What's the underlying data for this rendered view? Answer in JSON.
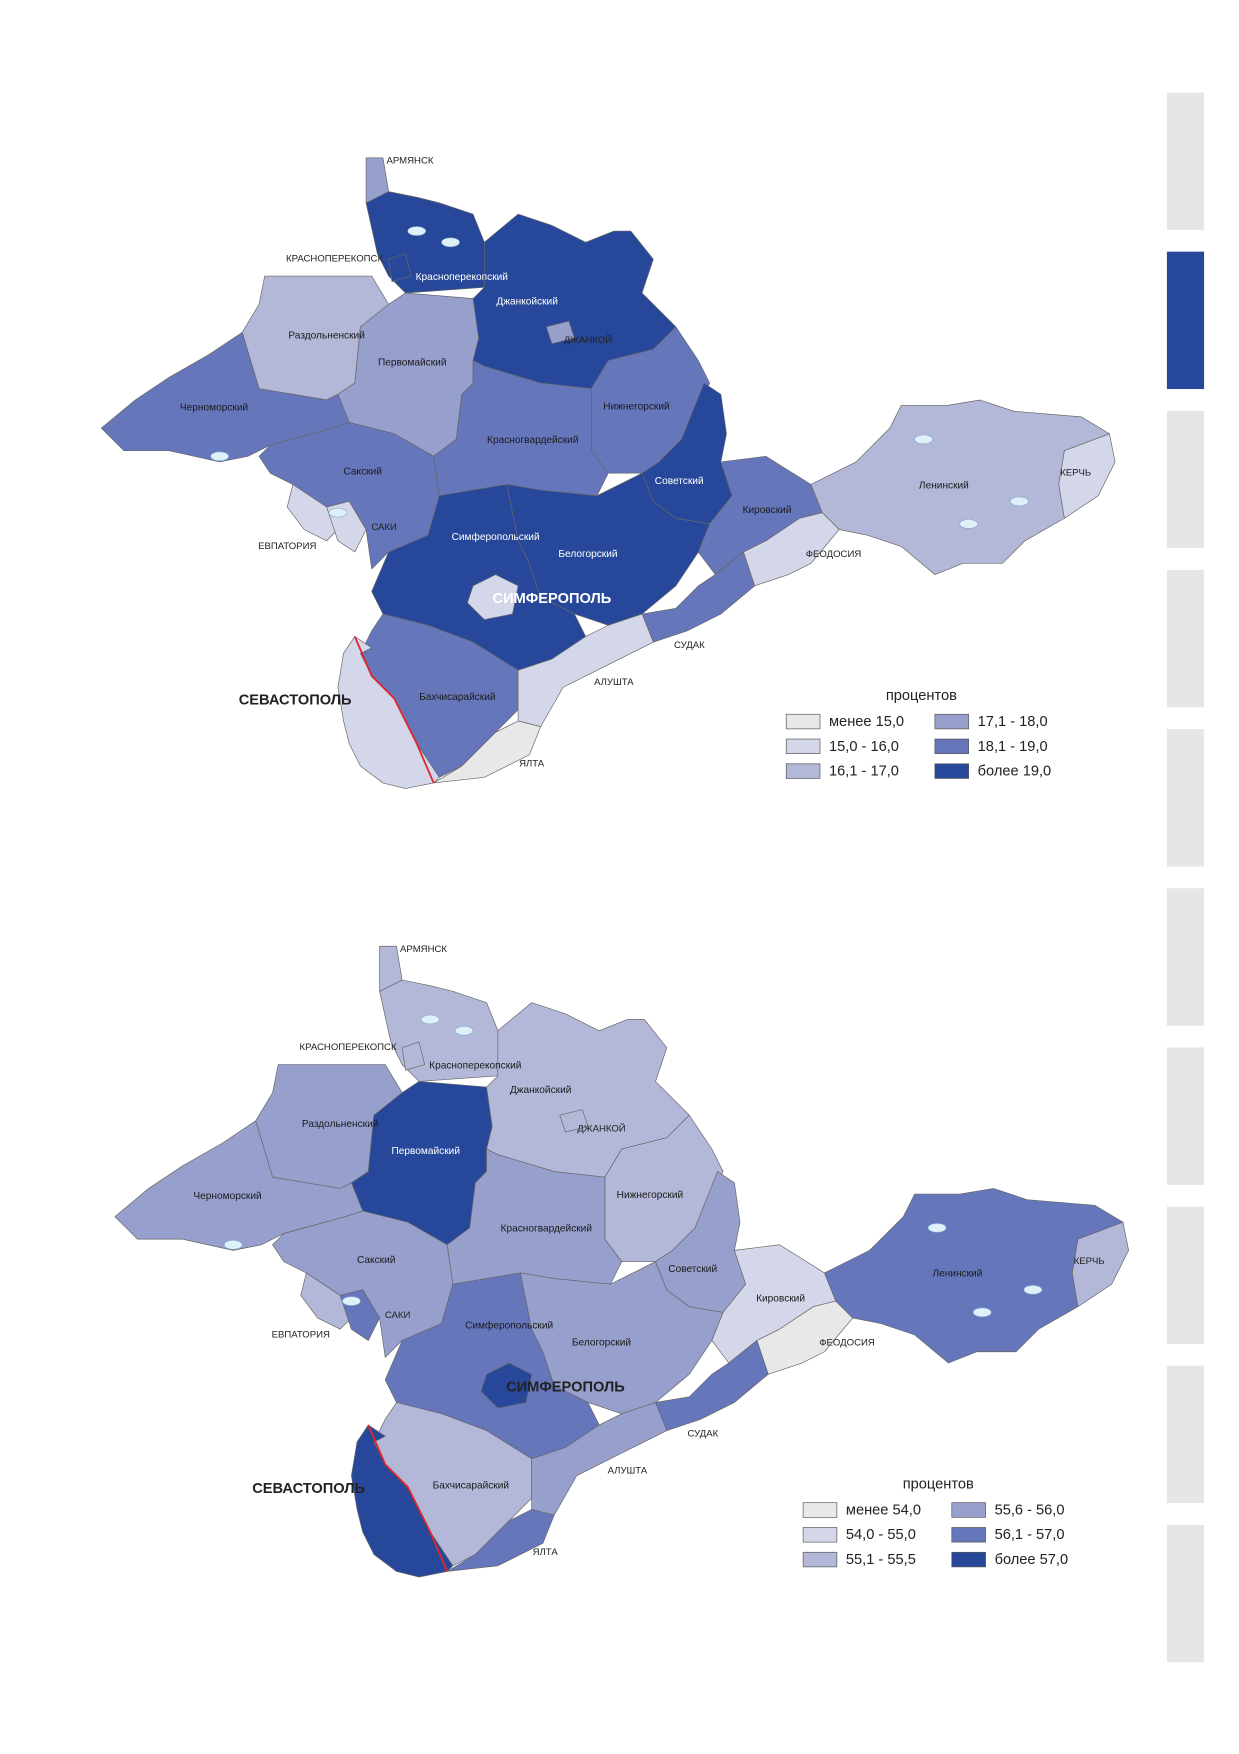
{
  "maps": [
    {
      "legend": {
        "title": "процентов",
        "items": [
          {
            "label": "менее 15,0",
            "color": "#e8e8e8"
          },
          {
            "label": "15,0 - 16,0",
            "color": "#d4d7ea"
          },
          {
            "label": "16,1 - 17,0",
            "color": "#b3b8d8"
          },
          {
            "label": "17,1 - 18,0",
            "color": "#979fcd"
          },
          {
            "label": "18,1 - 19,0",
            "color": "#6576bb"
          },
          {
            "label": "более 19,0",
            "color": "#27489a"
          }
        ]
      },
      "districts": [
        {
          "name": "Раздольненский",
          "color": "#b3b8d8"
        },
        {
          "name": "Первомайский",
          "color": "#979fcd"
        },
        {
          "name": "Черноморский",
          "color": "#6576bb"
        },
        {
          "name": "Красноперекопский",
          "color": "#27489a"
        },
        {
          "name": "Джанкойский",
          "color": "#27489a"
        },
        {
          "name": "Нижнегорский",
          "color": "#6576bb"
        },
        {
          "name": "Красногвардейский",
          "color": "#6576bb"
        },
        {
          "name": "Сакский",
          "color": "#6576bb"
        },
        {
          "name": "Симферопольский",
          "color": "#27489a"
        },
        {
          "name": "Белогорский",
          "color": "#27489a"
        },
        {
          "name": "Советский",
          "color": "#27489a"
        },
        {
          "name": "Кировский",
          "color": "#6576bb"
        },
        {
          "name": "Ленинский",
          "color": "#b3b8d8"
        },
        {
          "name": "Бахчисарайский",
          "color": "#6576bb"
        }
      ],
      "cities": [
        {
          "name": "АРМЯНСК",
          "color": "#979fcd"
        },
        {
          "name": "КРАСНОПЕРЕКОПСК",
          "color": "#27489a"
        },
        {
          "name": "ДЖАНКОЙ",
          "color": "#979fcd"
        },
        {
          "name": "ЕВПАТОРИЯ",
          "color": "#d4d7ea"
        },
        {
          "name": "САКИ",
          "color": "#d4d7ea"
        },
        {
          "name": "СИМФЕРОПОЛЬ",
          "color": "#d4d7ea"
        },
        {
          "name": "ФЕОДОСИЯ",
          "color": "#d4d7ea"
        },
        {
          "name": "КЕРЧЬ",
          "color": "#d4d7ea"
        },
        {
          "name": "СУДАК",
          "color": "#6576bb"
        },
        {
          "name": "АЛУШТА",
          "color": "#d4d7ea"
        },
        {
          "name": "ЯЛТА",
          "color": "#e8e8e8"
        },
        {
          "name": "СЕВАСТОПОЛЬ",
          "color": "#d4d7ea"
        }
      ]
    },
    {
      "legend": {
        "title": "процентов",
        "items": [
          {
            "label": "менее 54,0",
            "color": "#e8e8e8"
          },
          {
            "label": "54,0 - 55,0",
            "color": "#d4d7ea"
          },
          {
            "label": "55,1 - 55,5",
            "color": "#b3b8d8"
          },
          {
            "label": "55,6 - 56,0",
            "color": "#979fcd"
          },
          {
            "label": "56,1 - 57,0",
            "color": "#6576bb"
          },
          {
            "label": "более 57,0",
            "color": "#27489a"
          }
        ]
      },
      "districts": [
        {
          "name": "Раздольненский",
          "color": "#979fcd"
        },
        {
          "name": "Первомайский",
          "color": "#27489a"
        },
        {
          "name": "Черноморский",
          "color": "#979fcd"
        },
        {
          "name": "Красноперекопский",
          "color": "#b3b8d8"
        },
        {
          "name": "Джанкойский",
          "color": "#b3b8d8"
        },
        {
          "name": "Нижнегорский",
          "color": "#b3b8d8"
        },
        {
          "name": "Красногвардейский",
          "color": "#979fcd"
        },
        {
          "name": "Сакский",
          "color": "#979fcd"
        },
        {
          "name": "Симферопольский",
          "color": "#6576bb"
        },
        {
          "name": "Белогорский",
          "color": "#979fcd"
        },
        {
          "name": "Советский",
          "color": "#979fcd"
        },
        {
          "name": "Кировский",
          "color": "#d4d7ea"
        },
        {
          "name": "Ленинский",
          "color": "#6576bb"
        },
        {
          "name": "Бахчисарайский",
          "color": "#b3b8d8"
        }
      ],
      "cities": [
        {
          "name": "АРМЯНСК",
          "color": "#b3b8d8"
        },
        {
          "name": "КРАСНОПЕРЕКОПСК",
          "color": "#b3b8d8"
        },
        {
          "name": "ДЖАНКОЙ",
          "color": "#b3b8d8"
        },
        {
          "name": "ЕВПАТОРИЯ",
          "color": "#b3b8d8"
        },
        {
          "name": "САКИ",
          "color": "#6576bb"
        },
        {
          "name": "СИМФЕРОПОЛЬ",
          "color": "#27489a"
        },
        {
          "name": "ФЕОДОСИЯ",
          "color": "#e8e8e8"
        },
        {
          "name": "КЕРЧЬ",
          "color": "#b3b8d8"
        },
        {
          "name": "СУДАК",
          "color": "#6576bb"
        },
        {
          "name": "АЛУШТА",
          "color": "#979fcd"
        },
        {
          "name": "ЯЛТА",
          "color": "#6576bb"
        },
        {
          "name": "СЕВАСТОПОЛЬ",
          "color": "#27489a"
        }
      ]
    }
  ]
}
